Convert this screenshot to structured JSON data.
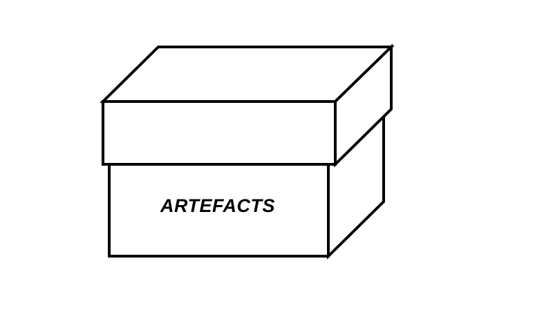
{
  "diagram": {
    "label": "ARTEFACTS",
    "stroke_color": "#000000",
    "fill_color": "#ffffff",
    "background_color": "#ffffff"
  }
}
